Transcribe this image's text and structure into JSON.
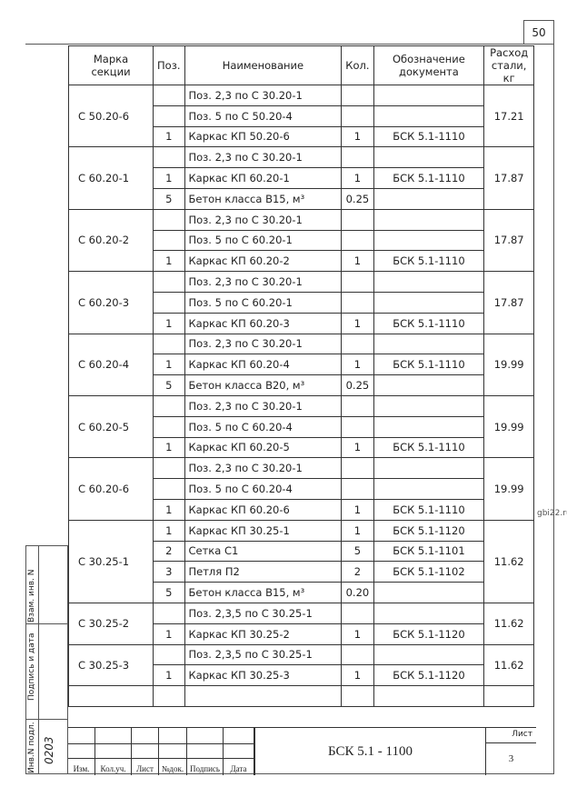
{
  "page_number": "50",
  "watermark": "gbi22.ru",
  "headers": {
    "mark": "Марка секции",
    "pos": "Поз.",
    "name": "Наименование",
    "qty": "Кол.",
    "doc": "Обозначение документа",
    "steel": "Расход стали, кг"
  },
  "groups": [
    {
      "mark": "С 50.20-6",
      "steel": "17.21",
      "rows": [
        {
          "pos": "",
          "name": "Поз. 2,3 по С 30.20-1",
          "qty": "",
          "doc": ""
        },
        {
          "pos": "",
          "name": "Поз. 5 по С 50.20-4",
          "qty": "",
          "doc": ""
        },
        {
          "pos": "1",
          "name": "Каркас КП 50.20-6",
          "qty": "1",
          "doc": "БСК 5.1-1110"
        }
      ]
    },
    {
      "mark": "С 60.20-1",
      "steel": "17.87",
      "rows": [
        {
          "pos": "",
          "name": "Поз. 2,3 по С 30.20-1",
          "qty": "",
          "doc": ""
        },
        {
          "pos": "1",
          "name": "Каркас КП 60.20-1",
          "qty": "1",
          "doc": "БСК 5.1-1110"
        },
        {
          "pos": "5",
          "name": "Бетон класса В15, м³",
          "qty": "0.25",
          "doc": ""
        }
      ]
    },
    {
      "mark": "С 60.20-2",
      "steel": "17.87",
      "rows": [
        {
          "pos": "",
          "name": "Поз. 2,3 по С 30.20-1",
          "qty": "",
          "doc": ""
        },
        {
          "pos": "",
          "name": "Поз. 5 по С 60.20-1",
          "qty": "",
          "doc": ""
        },
        {
          "pos": "1",
          "name": "Каркас КП 60.20-2",
          "qty": "1",
          "doc": "БСК 5.1-1110"
        }
      ]
    },
    {
      "mark": "С 60.20-3",
      "steel": "17.87",
      "rows": [
        {
          "pos": "",
          "name": "Поз. 2,3 по С 30.20-1",
          "qty": "",
          "doc": ""
        },
        {
          "pos": "",
          "name": "Поз. 5 по С 60.20-1",
          "qty": "",
          "doc": ""
        },
        {
          "pos": "1",
          "name": "Каркас КП 60.20-3",
          "qty": "1",
          "doc": "БСК 5.1-1110"
        }
      ]
    },
    {
      "mark": "С 60.20-4",
      "steel": "19.99",
      "rows": [
        {
          "pos": "",
          "name": "Поз. 2,3 по С 30.20-1",
          "qty": "",
          "doc": ""
        },
        {
          "pos": "1",
          "name": "Каркас КП 60.20-4",
          "qty": "1",
          "doc": "БСК 5.1-1110"
        },
        {
          "pos": "5",
          "name": "Бетон класса В20, м³",
          "qty": "0.25",
          "doc": ""
        }
      ]
    },
    {
      "mark": "С 60.20-5",
      "steel": "19.99",
      "rows": [
        {
          "pos": "",
          "name": "Поз. 2,3 по С 30.20-1",
          "qty": "",
          "doc": ""
        },
        {
          "pos": "",
          "name": "Поз. 5 по С 60.20-4",
          "qty": "",
          "doc": ""
        },
        {
          "pos": "1",
          "name": "Каркас КП 60.20-5",
          "qty": "1",
          "doc": "БСК 5.1-1110"
        }
      ]
    },
    {
      "mark": "С 60.20-6",
      "steel": "19.99",
      "rows": [
        {
          "pos": "",
          "name": "Поз. 2,3 по С 30.20-1",
          "qty": "",
          "doc": ""
        },
        {
          "pos": "",
          "name": "Поз. 5 по С 60.20-4",
          "qty": "",
          "doc": ""
        },
        {
          "pos": "1",
          "name": "Каркас КП 60.20-6",
          "qty": "1",
          "doc": "БСК 5.1-1110"
        }
      ]
    },
    {
      "mark": "С 30.25-1",
      "steel": "11.62",
      "rows": [
        {
          "pos": "1",
          "name": "Каркас КП 30.25-1",
          "qty": "1",
          "doc": "БСК 5.1-1120"
        },
        {
          "pos": "2",
          "name": "Сетка С1",
          "qty": "5",
          "doc": "БСК 5.1-1101"
        },
        {
          "pos": "3",
          "name": "Петля П2",
          "qty": "2",
          "doc": "БСК 5.1-1102"
        },
        {
          "pos": "5",
          "name": "Бетон класса В15, м³",
          "qty": "0.20",
          "doc": ""
        }
      ]
    },
    {
      "mark": "С 30.25-2",
      "steel": "11.62",
      "rows": [
        {
          "pos": "",
          "name": "Поз. 2,3,5 по С 30.25-1",
          "qty": "",
          "doc": ""
        },
        {
          "pos": "1",
          "name": "Каркас КП 30.25-2",
          "qty": "1",
          "doc": "БСК 5.1-1120"
        }
      ]
    },
    {
      "mark": "С 30.25-3",
      "steel": "11.62",
      "rows": [
        {
          "pos": "",
          "name": "Поз. 2,3,5 по С 30.25-1",
          "qty": "",
          "doc": ""
        },
        {
          "pos": "1",
          "name": "Каркас КП 30.25-3",
          "qty": "1",
          "doc": "БСК 5.1-1120"
        }
      ]
    }
  ],
  "side": {
    "inv_orig": "Инв.N подл.",
    "inv_value": "0203",
    "sign_date": "Подпись и дата",
    "replace_inv": "Взам. инв. N"
  },
  "title_block": {
    "cols": [
      "Изм.",
      "Кол.уч.",
      "Лист",
      "№док.",
      "Подпись",
      "Дата"
    ],
    "code": "БСК 5.1 - 1100",
    "sheet_label": "Лист",
    "sheet": "3"
  }
}
